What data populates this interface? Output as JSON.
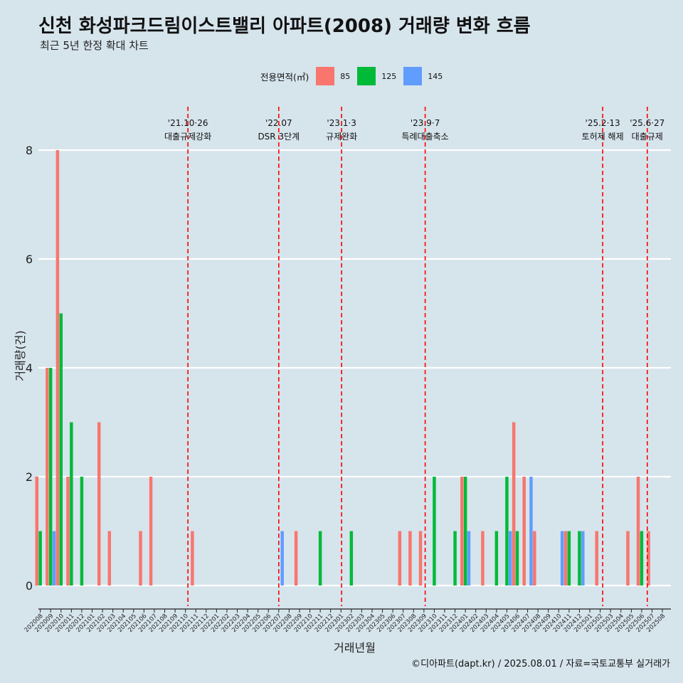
{
  "chart_data": {
    "type": "bar",
    "title": "신천 화성파크드림이스트밸리 아파트(2008) 거래량 변화 흐름",
    "subtitle": "최근 5년 한정 확대 차트",
    "xlabel": "거래년월",
    "ylabel": "거래량(건)",
    "ylim": [
      0,
      8
    ],
    "yticks": [
      0,
      2,
      4,
      6,
      8
    ],
    "grid": true,
    "legend_title": "전용면적(㎡)",
    "legend_placement": "top-center",
    "categories": [
      "202008",
      "202009",
      "202010",
      "202011",
      "202012",
      "202101",
      "202102",
      "202103",
      "202104",
      "202105",
      "202106",
      "202107",
      "202108",
      "202109",
      "202110",
      "202111",
      "202112",
      "202201",
      "202202",
      "202203",
      "202204",
      "202205",
      "202206",
      "202207",
      "202208",
      "202209",
      "202210",
      "202211",
      "202212",
      "202301",
      "202302",
      "202303",
      "202304",
      "202305",
      "202306",
      "202307",
      "202308",
      "202309",
      "202310",
      "202311",
      "202312",
      "202401",
      "202402",
      "202403",
      "202404",
      "202405",
      "202406",
      "202407",
      "202408",
      "202409",
      "202410",
      "202411",
      "202412",
      "202501",
      "202502",
      "202503",
      "202504",
      "202505",
      "202506",
      "202507",
      "202508"
    ],
    "series": [
      {
        "name": "85",
        "color": "#f8766d",
        "values": [
          2,
          4,
          8,
          2,
          0,
          0,
          3,
          1,
          0,
          0,
          1,
          2,
          0,
          0,
          0,
          1,
          0,
          0,
          0,
          0,
          0,
          0,
          0,
          0,
          0,
          1,
          0,
          0,
          0,
          0,
          0,
          0,
          0,
          0,
          0,
          1,
          1,
          1,
          0,
          0,
          0,
          2,
          0,
          1,
          0,
          0,
          3,
          2,
          1,
          0,
          0,
          1,
          0,
          0,
          1,
          0,
          0,
          1,
          2,
          1,
          0
        ]
      },
      {
        "name": "125",
        "color": "#00ba38",
        "values": [
          1,
          4,
          5,
          3,
          2,
          0,
          0,
          0,
          0,
          0,
          0,
          0,
          0,
          0,
          0,
          0,
          0,
          0,
          0,
          0,
          0,
          0,
          0,
          0,
          0,
          0,
          0,
          1,
          0,
          0,
          1,
          0,
          0,
          0,
          0,
          0,
          0,
          0,
          2,
          0,
          1,
          2,
          0,
          0,
          1,
          2,
          1,
          0,
          0,
          0,
          0,
          1,
          1,
          0,
          0,
          0,
          0,
          0,
          1,
          0,
          0
        ]
      },
      {
        "name": "145",
        "color": "#619cff",
        "values": [
          0,
          1,
          0,
          0,
          0,
          0,
          0,
          0,
          0,
          0,
          0,
          0,
          0,
          0,
          0,
          0,
          0,
          0,
          0,
          0,
          0,
          0,
          0,
          1,
          0,
          0,
          0,
          0,
          0,
          0,
          0,
          0,
          0,
          0,
          0,
          0,
          0,
          0,
          0,
          0,
          0,
          1,
          0,
          0,
          0,
          1,
          0,
          2,
          0,
          0,
          1,
          0,
          1,
          0,
          0,
          0,
          0,
          0,
          0,
          0,
          0
        ]
      }
    ],
    "annotations": [
      {
        "date": "'21.10·26",
        "label": "대출규제강화",
        "at": "202110.4"
      },
      {
        "date": "'22.07",
        "label": "DSR 3단계",
        "at": "202207"
      },
      {
        "date": "'23.1·3",
        "label": "규제완화",
        "at": "202301.1"
      },
      {
        "date": "'23.9·7",
        "label": "특례대출축소",
        "at": "202309.2"
      },
      {
        "date": "'25.2·13",
        "label": "토허제 해제",
        "at": "202502.4"
      },
      {
        "date": "'25.6·27",
        "label": "대출규제",
        "at": "202506.9"
      }
    ]
  },
  "caption": "©디아파트(dapt.kr) / 2025.08.01 / 자료=국토교통부 실거래가"
}
